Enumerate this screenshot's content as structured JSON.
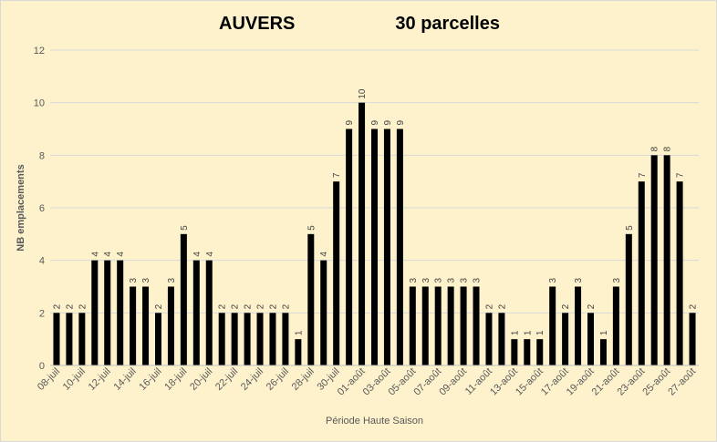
{
  "chart_data": {
    "type": "bar",
    "title_left": "AUVERS",
    "title_right": "30 parcelles",
    "xlabel": "Période Haute Saison",
    "ylabel": "NB emplacements",
    "ylim": [
      0,
      12
    ],
    "yticks": [
      0,
      2,
      4,
      6,
      8,
      10,
      12
    ],
    "grid": true,
    "legend": "none",
    "bar_color": "#000000",
    "background": "#fdf2cc",
    "tick_labels": [
      "08-juil",
      "10-juil",
      "12-juil",
      "14-juil",
      "16-juil",
      "18-juil",
      "20-juil",
      "22-juil",
      "24-juil",
      "26-juil",
      "28-juil",
      "30-juil",
      "01-août",
      "03-août",
      "05-août",
      "07-août",
      "09-août",
      "11-août",
      "13-août",
      "15-août",
      "17-août",
      "19-août",
      "21-août",
      "23-août",
      "25-août",
      "27-août"
    ],
    "values": [
      2,
      2,
      2,
      4,
      4,
      4,
      3,
      3,
      2,
      3,
      5,
      4,
      4,
      2,
      2,
      2,
      2,
      2,
      2,
      1,
      5,
      4,
      7,
      9,
      10,
      9,
      9,
      9,
      3,
      3,
      3,
      3,
      3,
      3,
      2,
      2,
      1,
      1,
      1,
      3,
      2,
      3,
      2,
      1,
      3,
      5,
      7,
      8,
      8,
      7,
      2
    ]
  }
}
